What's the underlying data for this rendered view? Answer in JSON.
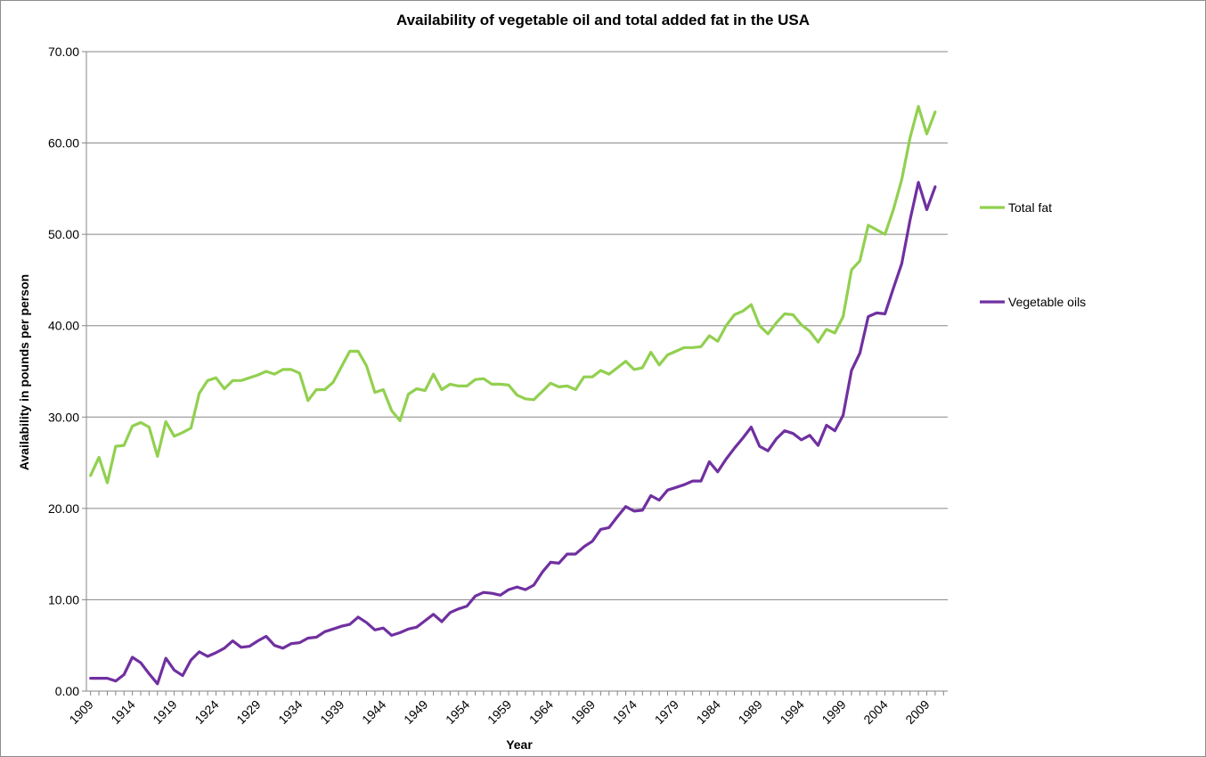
{
  "chart_data": {
    "type": "line",
    "title": "Availability of vegetable oil and total added fat in the USA",
    "xlabel": "Year",
    "ylabel": "Availability in pounds per person",
    "xlim": [
      1909,
      2011
    ],
    "ylim": [
      0,
      70
    ],
    "y_ticks": [
      "0.00",
      "10.00",
      "20.00",
      "30.00",
      "40.00",
      "50.00",
      "60.00",
      "70.00"
    ],
    "x_tick_years": [
      1909,
      1914,
      1919,
      1924,
      1929,
      1934,
      1939,
      1944,
      1949,
      1954,
      1959,
      1964,
      1969,
      1974,
      1979,
      1984,
      1989,
      1994,
      1999,
      2004,
      2009
    ],
    "grid": "horizontal",
    "legend_position": "right",
    "series": [
      {
        "name": "Total fat",
        "color": "#92d050",
        "x": [
          1909,
          1910,
          1911,
          1912,
          1913,
          1914,
          1915,
          1916,
          1917,
          1918,
          1919,
          1920,
          1921,
          1922,
          1923,
          1924,
          1925,
          1926,
          1927,
          1928,
          1929,
          1930,
          1931,
          1932,
          1933,
          1934,
          1935,
          1936,
          1937,
          1938,
          1939,
          1940,
          1941,
          1942,
          1943,
          1944,
          1945,
          1946,
          1947,
          1948,
          1949,
          1950,
          1951,
          1952,
          1953,
          1954,
          1955,
          1956,
          1957,
          1958,
          1959,
          1960,
          1961,
          1962,
          1963,
          1964,
          1965,
          1966,
          1967,
          1968,
          1969,
          1970,
          1971,
          1972,
          1973,
          1974,
          1975,
          1976,
          1977,
          1978,
          1979,
          1980,
          1981,
          1982,
          1983,
          1984,
          1985,
          1986,
          1987,
          1988,
          1989,
          1990,
          1991,
          1992,
          1993,
          1994,
          1995,
          1996,
          1997,
          1998,
          1999,
          2000,
          2001,
          2002,
          2003,
          2004,
          2005,
          2006,
          2007,
          2008,
          2009,
          2010
        ],
        "values": [
          23.6,
          25.6,
          22.8,
          26.8,
          26.9,
          29.0,
          29.4,
          28.9,
          25.7,
          29.5,
          27.9,
          28.3,
          28.8,
          32.6,
          34.0,
          34.3,
          33.1,
          34.0,
          34.0,
          34.3,
          34.6,
          35.0,
          34.7,
          35.2,
          35.2,
          34.8,
          31.8,
          33.0,
          33.0,
          33.8,
          35.5,
          37.2,
          37.2,
          35.6,
          32.7,
          33.0,
          30.7,
          29.6,
          32.5,
          33.1,
          32.9,
          34.7,
          33.0,
          33.6,
          33.4,
          33.4,
          34.1,
          34.2,
          33.6,
          33.6,
          33.5,
          32.4,
          32.0,
          31.9,
          32.8,
          33.7,
          33.3,
          33.4,
          33.0,
          34.4,
          34.4,
          35.1,
          34.7,
          35.4,
          36.1,
          35.2,
          35.4,
          37.1,
          35.7,
          36.8,
          37.2,
          37.6,
          37.6,
          37.7,
          38.9,
          38.3,
          40.0,
          41.2,
          41.6,
          42.3,
          40.0,
          39.1,
          40.3,
          41.3,
          41.2,
          40.1,
          39.4,
          38.2,
          39.6,
          39.2,
          41.0,
          46.1,
          47.1,
          51.0,
          50.5,
          50.0,
          52.7,
          56.0,
          60.6,
          64.0,
          61.0,
          63.4
        ]
      },
      {
        "name": "Vegetable oils",
        "color": "#7030a0",
        "x": [
          1909,
          1910,
          1911,
          1912,
          1913,
          1914,
          1915,
          1916,
          1917,
          1918,
          1919,
          1920,
          1921,
          1922,
          1923,
          1924,
          1925,
          1926,
          1927,
          1928,
          1929,
          1930,
          1931,
          1932,
          1933,
          1934,
          1935,
          1936,
          1937,
          1938,
          1939,
          1940,
          1941,
          1942,
          1943,
          1944,
          1945,
          1946,
          1947,
          1948,
          1949,
          1950,
          1951,
          1952,
          1953,
          1954,
          1955,
          1956,
          1957,
          1958,
          1959,
          1960,
          1961,
          1962,
          1963,
          1964,
          1965,
          1966,
          1967,
          1968,
          1969,
          1970,
          1971,
          1972,
          1973,
          1974,
          1975,
          1976,
          1977,
          1978,
          1979,
          1980,
          1981,
          1982,
          1983,
          1984,
          1985,
          1986,
          1987,
          1988,
          1989,
          1990,
          1991,
          1992,
          1993,
          1994,
          1995,
          1996,
          1997,
          1998,
          1999,
          2000,
          2001,
          2002,
          2003,
          2004,
          2005,
          2006,
          2007,
          2008,
          2009,
          2010
        ],
        "values": [
          1.4,
          1.4,
          1.4,
          1.1,
          1.8,
          3.7,
          3.1,
          1.9,
          0.8,
          3.6,
          2.3,
          1.7,
          3.4,
          4.3,
          3.8,
          4.2,
          4.7,
          5.5,
          4.8,
          4.9,
          5.5,
          6.0,
          5.0,
          4.7,
          5.2,
          5.3,
          5.8,
          5.9,
          6.5,
          6.8,
          7.1,
          7.3,
          8.1,
          7.5,
          6.7,
          6.9,
          6.1,
          6.4,
          6.8,
          7.0,
          7.7,
          8.4,
          7.6,
          8.6,
          9.0,
          9.3,
          10.4,
          10.8,
          10.7,
          10.5,
          11.1,
          11.4,
          11.1,
          11.6,
          13.0,
          14.1,
          14.0,
          15.0,
          15.0,
          15.8,
          16.4,
          17.7,
          17.9,
          19.1,
          20.2,
          19.7,
          19.8,
          21.4,
          20.9,
          22.0,
          22.3,
          22.6,
          23.0,
          23.0,
          25.1,
          24.0,
          25.4,
          26.6,
          27.7,
          28.9,
          26.8,
          26.3,
          27.6,
          28.5,
          28.2,
          27.5,
          28.0,
          26.9,
          29.1,
          28.5,
          30.2,
          35.1,
          37.0,
          41.0,
          41.4,
          41.3,
          44.1,
          46.8,
          51.6,
          55.7,
          52.7,
          55.2
        ]
      }
    ]
  }
}
